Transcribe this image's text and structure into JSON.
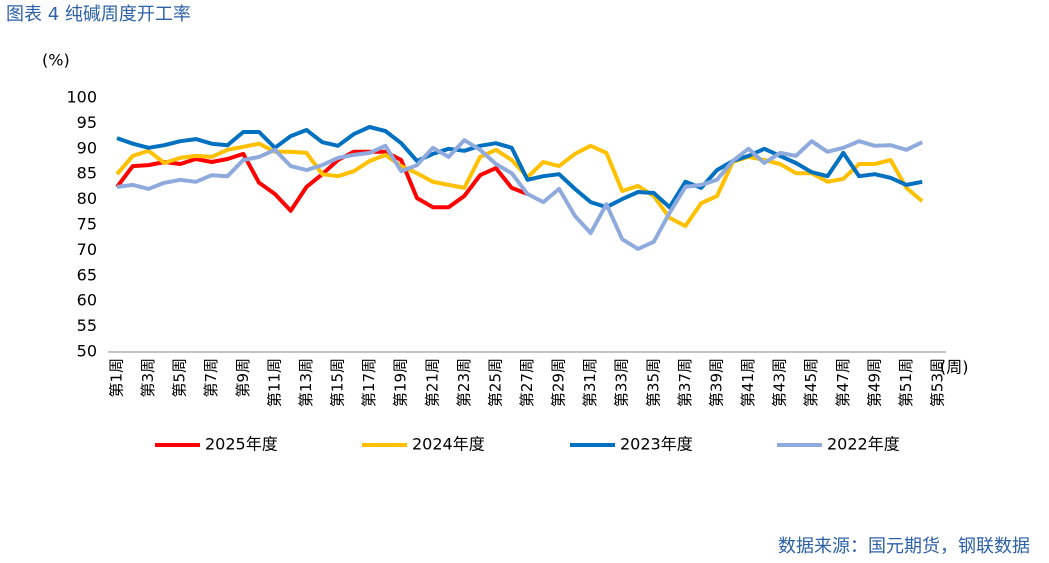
{
  "chart_data": {
    "type": "line",
    "title": "图表 4  纯碱周度开工率",
    "y_label": "(%)",
    "x_label": "(周)",
    "source": "数据来源：国元期货，钢联数据",
    "categories": [
      "第1周",
      null,
      "第3周",
      null,
      "第5周",
      null,
      "第7周",
      null,
      "第9周",
      null,
      "第11周",
      null,
      "第13周",
      null,
      "第15周",
      null,
      "第17周",
      null,
      "第19周",
      null,
      "第21周",
      null,
      "第23周",
      null,
      "第25周",
      null,
      "第27周",
      null,
      "第29周",
      null,
      "第31周",
      null,
      "第33周",
      null,
      "第35周",
      null,
      "第37周",
      null,
      "第39周",
      null,
      "第41周",
      null,
      "第43周",
      null,
      "第45周",
      null,
      "第47周",
      null,
      "第49周",
      null,
      "第51周",
      null,
      "第53周"
    ],
    "ylim": [
      50,
      100
    ],
    "yticks": [
      50,
      55,
      60,
      65,
      70,
      75,
      80,
      85,
      90,
      95,
      100
    ],
    "grid": false,
    "legend": "bottom",
    "series": [
      {
        "name": "2025年度",
        "color": "#ff0000",
        "values": [
          82.5,
          86.6,
          86.8,
          87.4,
          87,
          88,
          87.4,
          88,
          89,
          83.3,
          81.1,
          77.8,
          82.5,
          85,
          87.8,
          89.4,
          89.4,
          89.4,
          87.8,
          80.3,
          78.5,
          78.5,
          80.7,
          84.8,
          86.2,
          82.3,
          81.1,
          null,
          null,
          null,
          null,
          null,
          null,
          null,
          null,
          null,
          null,
          null,
          null,
          null,
          null,
          null,
          null,
          null,
          null,
          null,
          null,
          null,
          null,
          null,
          null,
          null,
          null
        ]
      },
      {
        "name": "2024年度",
        "color": "#ffc000",
        "values": [
          85,
          88.6,
          89.6,
          87.2,
          88.2,
          88.6,
          88.4,
          89.8,
          90.4,
          91,
          89.4,
          89.4,
          89.2,
          85,
          84.6,
          85.6,
          87.6,
          88.8,
          86.6,
          85.2,
          83.5,
          82.9,
          82.3,
          88.4,
          89.8,
          87.8,
          84.4,
          87.4,
          86.6,
          89,
          90.6,
          89.2,
          81.7,
          82.7,
          80.7,
          76.4,
          74.8,
          79.3,
          80.7,
          87.4,
          88.4,
          87.8,
          87,
          85.2,
          85.2,
          83.5,
          84.1,
          87,
          87,
          87.8,
          82.3,
          79.7,
          null
        ]
      },
      {
        "name": "2023年度",
        "color": "#0070c0",
        "values": [
          92.1,
          91,
          90.2,
          90.7,
          91.5,
          91.9,
          91,
          90.7,
          93.3,
          93.3,
          90.2,
          92.5,
          93.7,
          91.3,
          90.6,
          92.9,
          94.3,
          93.5,
          91.1,
          87.6,
          89,
          90,
          89.6,
          90.6,
          91.1,
          90.2,
          83.9,
          84.6,
          85,
          82.1,
          79.5,
          78.5,
          80.1,
          81.5,
          81.3,
          78.5,
          83.5,
          82.3,
          85.8,
          87.6,
          88.6,
          90,
          88.6,
          87.2,
          85.4,
          84.6,
          89.2,
          84.6,
          85,
          84.3,
          82.9,
          83.5,
          null
        ]
      },
      {
        "name": "2022年度",
        "color": "#8faadc",
        "values": [
          82.5,
          82.9,
          82.1,
          83.3,
          83.9,
          83.5,
          84.8,
          84.6,
          87.8,
          88.4,
          89.8,
          86.6,
          85.8,
          86.8,
          88.2,
          88.8,
          89.2,
          90.6,
          85.6,
          86.8,
          90.2,
          88.4,
          91.7,
          89.8,
          87,
          85.2,
          81.1,
          79.5,
          82.1,
          76.8,
          73.4,
          79.1,
          72.2,
          70.3,
          71.7,
          77.4,
          82.5,
          82.9,
          83.9,
          87.6,
          90,
          87.2,
          89.2,
          88.6,
          91.5,
          89.4,
          90.2,
          91.5,
          90.6,
          90.7,
          89.8,
          91.3,
          null
        ]
      }
    ]
  }
}
